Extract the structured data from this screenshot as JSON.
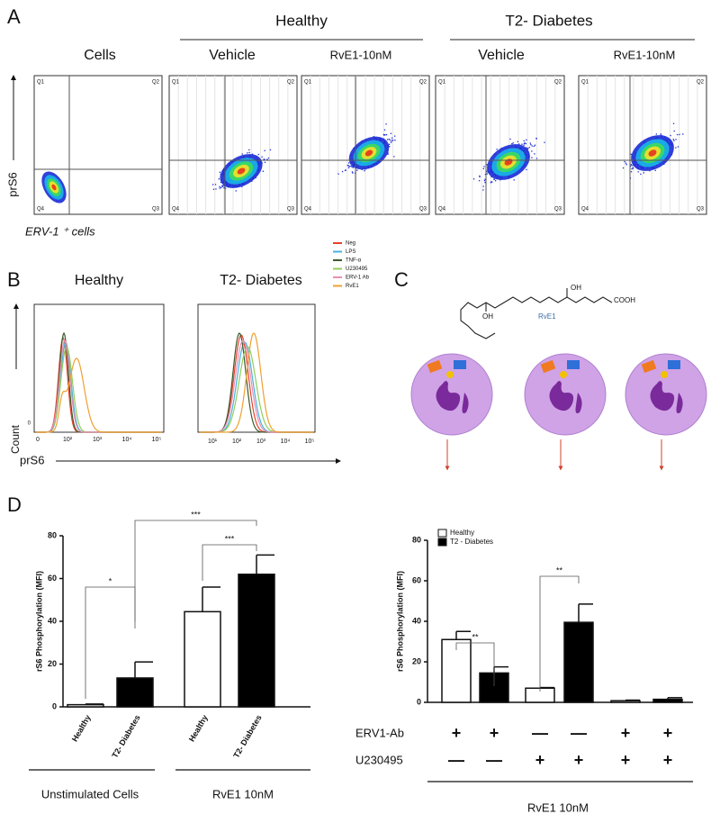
{
  "panel_a": {
    "letter": "A",
    "groups": [
      "Healthy",
      "T2- Diabetes"
    ],
    "plot_titles": [
      "Cells",
      "Vehicle",
      "RvE1-10nM",
      "Vehicle",
      "RvE1-10nM"
    ],
    "quadrants": [
      "Q1",
      "Q2",
      "Q3",
      "Q4"
    ],
    "y_label": "prS6",
    "x_label": "ERV-1 ⁺ cells"
  },
  "panel_b": {
    "letter": "B",
    "plot_titles": [
      "Healthy",
      "T2- Diabetes"
    ],
    "legend": [
      {
        "name": "Neg",
        "color": "#e8412c"
      },
      {
        "name": "LPS",
        "color": "#45b3e0"
      },
      {
        "name": "TNF-α",
        "color": "#3c5a2a"
      },
      {
        "name": "U230495",
        "color": "#8fcf5a"
      },
      {
        "name": "ERV-1 Ab",
        "color": "#e98fb5"
      },
      {
        "name": "RvE1",
        "color": "#f0a030"
      }
    ],
    "x_ticks_left": [
      "0",
      "10²",
      "10³",
      "10⁴",
      "10⁵"
    ],
    "x_ticks_right": [
      "10¹",
      "10²",
      "10³",
      "10⁴",
      "10⁵"
    ],
    "y_tick": "0",
    "y_label": "Count",
    "x_label": "prS6"
  },
  "panel_c": {
    "letter": "C",
    "structure_labels": [
      "OH",
      "OH",
      "COOH"
    ],
    "compound": "RvE1"
  },
  "panel_d": {
    "letter": "D"
  },
  "chart_data": [
    {
      "type": "bar",
      "y_label": "rS6 Phosphorylation (MFI)",
      "categories": [
        "Healthy",
        "T2- Diabetes",
        "Healthy",
        "T2- Diabetes"
      ],
      "groups": [
        "Unstimulated Cells",
        "RvE1 10nM"
      ],
      "values": [
        1,
        13.5,
        44.5,
        62
      ],
      "errors": [
        0.3,
        7.5,
        11.5,
        9
      ],
      "colors": [
        "#ffffff",
        "#000000",
        "#ffffff",
        "#000000"
      ],
      "ylim": [
        0,
        80
      ],
      "yticks": [
        0,
        20,
        40,
        60,
        80
      ],
      "annotations": [
        "*",
        "***",
        "***"
      ]
    },
    {
      "type": "bar",
      "y_label": "rS6 Phosphorylation (MFI)",
      "legend": [
        {
          "name": "Healthy",
          "color": "#ffffff"
        },
        {
          "name": "T2 - Diabetes",
          "color": "#000000"
        }
      ],
      "values": [
        31,
        14.5,
        7,
        39.5,
        0.8,
        1.5
      ],
      "errors": [
        4,
        3,
        0.3,
        9,
        0.3,
        0.8
      ],
      "colors": [
        "#ffffff",
        "#000000",
        "#ffffff",
        "#000000",
        "#ffffff",
        "#000000"
      ],
      "ylim": [
        0,
        80
      ],
      "yticks": [
        0,
        20,
        40,
        60,
        80
      ],
      "annotations": [
        "**",
        "**"
      ],
      "conditions": [
        {
          "label": "ERV1-Ab",
          "marks": [
            "+",
            "+",
            "—",
            "—",
            "+",
            "+"
          ]
        },
        {
          "label": "U230495",
          "marks": [
            "—",
            "—",
            "+",
            "+",
            "+",
            "+"
          ]
        }
      ],
      "footer": "RvE1 10nM"
    }
  ]
}
